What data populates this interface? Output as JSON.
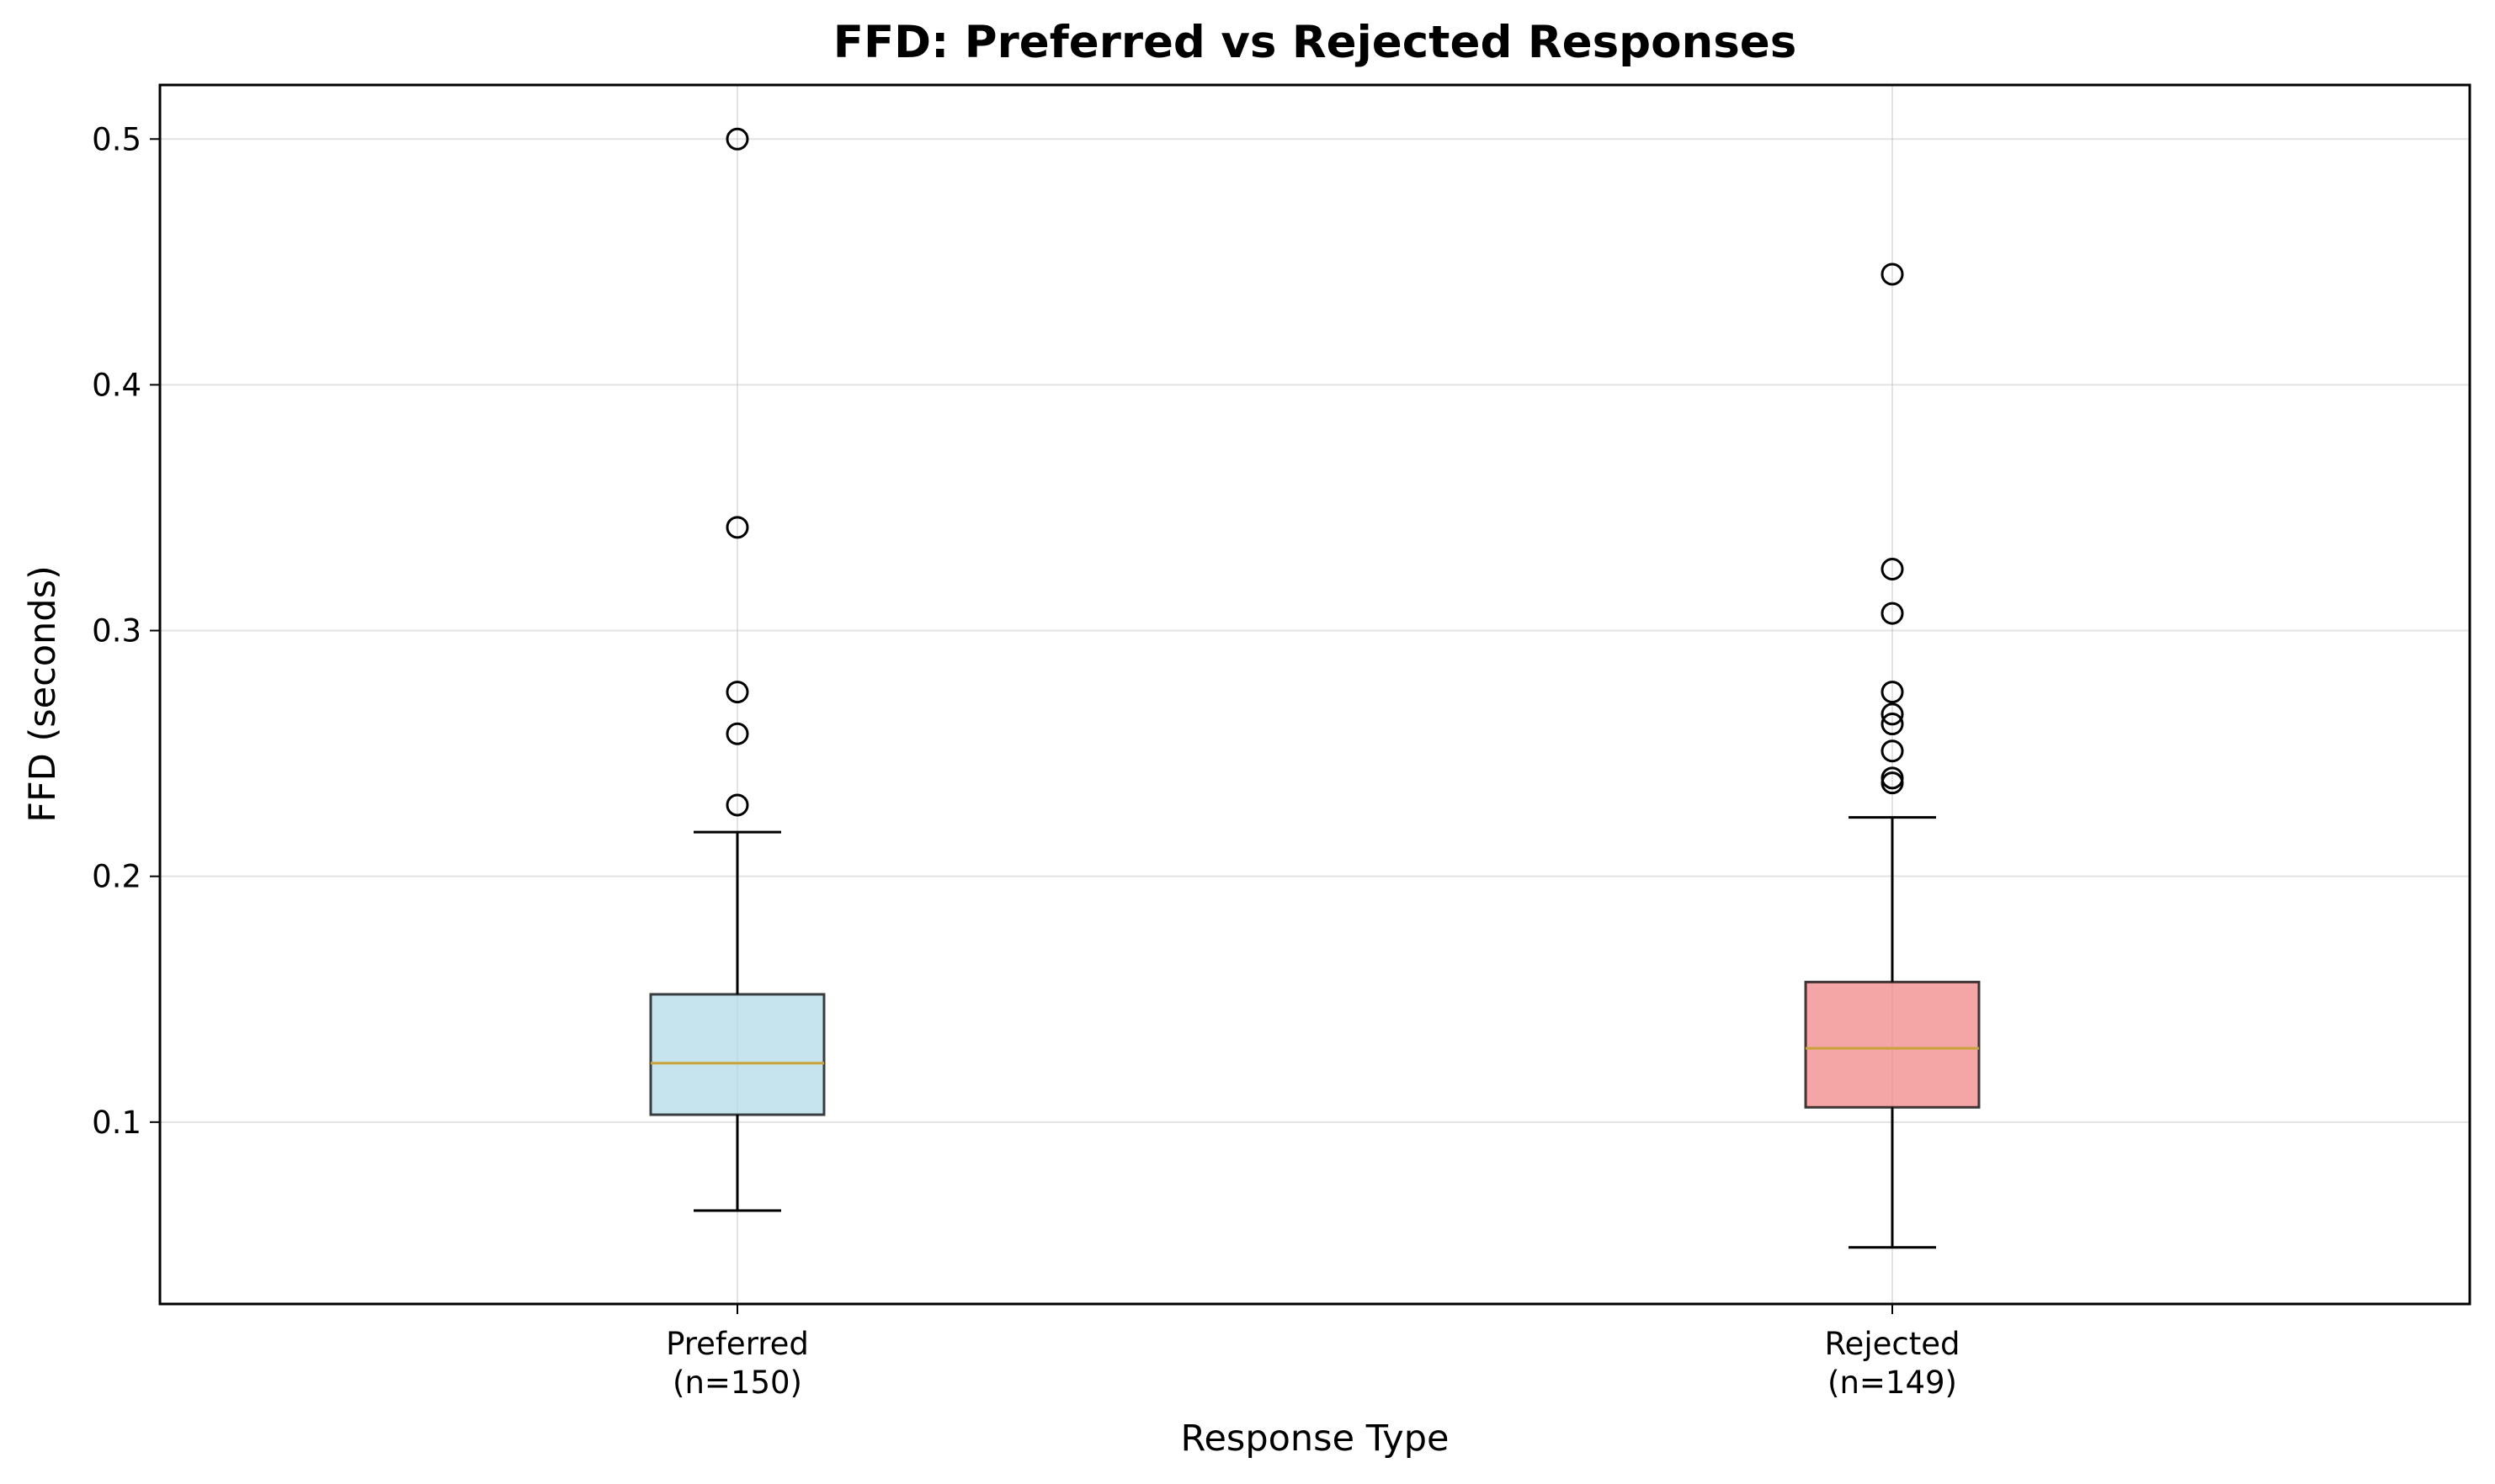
{
  "chart_data": {
    "type": "box",
    "title": "FFD: Preferred vs Rejected Responses",
    "xlabel": "Response Type",
    "ylabel": "FFD (seconds)",
    "ylim": [
      0.026,
      0.522
    ],
    "y_ticks": [
      0.1,
      0.2,
      0.3,
      0.4,
      0.5
    ],
    "y_tick_labels": [
      "0.1",
      "0.2",
      "0.3",
      "0.4",
      "0.5"
    ],
    "grid": true,
    "categories": [
      {
        "label_line1": "Preferred",
        "label_line2": "(n=150)",
        "whisker_low": 0.064,
        "q1": 0.103,
        "median": 0.124,
        "q3": 0.152,
        "whisker_high": 0.218,
        "outliers": [
          0.229,
          0.258,
          0.275,
          0.342,
          0.5
        ],
        "fill_color": "#add8e6"
      },
      {
        "label_line1": "Rejected",
        "label_line2": "(n=149)",
        "whisker_low": 0.049,
        "q1": 0.106,
        "median": 0.13,
        "q3": 0.157,
        "whisker_high": 0.224,
        "outliers": [
          0.238,
          0.24,
          0.251,
          0.262,
          0.266,
          0.275,
          0.307,
          0.325,
          0.445
        ],
        "fill_color": "#f08080"
      }
    ],
    "box_fill_opacity": 0.7,
    "median_color": "#c9a23a"
  }
}
